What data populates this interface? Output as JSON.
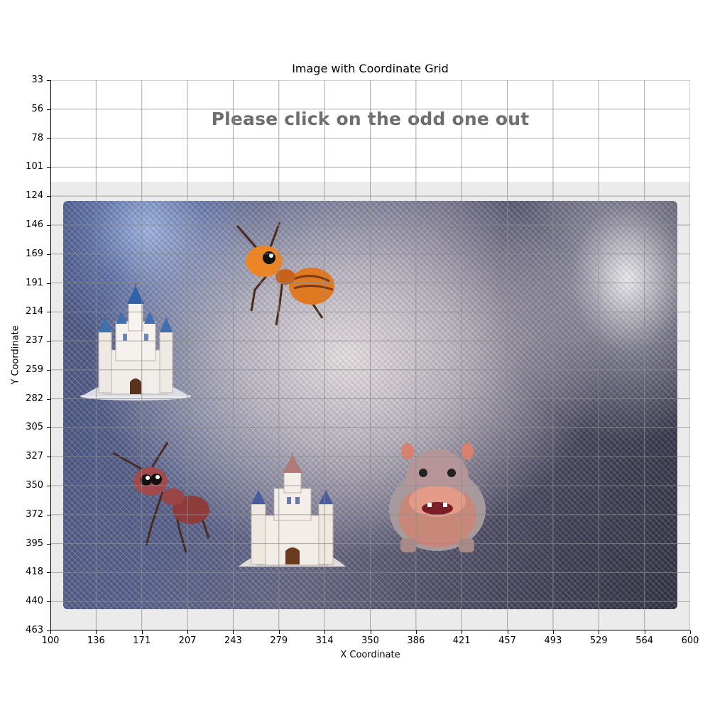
{
  "plot": {
    "title": "Image with Coordinate Grid",
    "xlabel": "X Coordinate",
    "ylabel": "Y Coordinate",
    "x_ticks": [
      "100",
      "136",
      "171",
      "207",
      "243",
      "279",
      "314",
      "350",
      "386",
      "421",
      "457",
      "493",
      "529",
      "564",
      "600"
    ],
    "y_ticks": [
      "33",
      "56",
      "78",
      "101",
      "124",
      "146",
      "169",
      "191",
      "214",
      "237",
      "259",
      "282",
      "305",
      "327",
      "350",
      "372",
      "395",
      "418",
      "440",
      "463"
    ],
    "grid": true
  },
  "captcha": {
    "prompt": "Please click on the odd one out",
    "items": [
      {
        "name": "castle",
        "icon": "castle-icon"
      },
      {
        "name": "ant",
        "icon": "ant-icon"
      },
      {
        "name": "castle",
        "icon": "castle-icon"
      },
      {
        "name": "ant",
        "icon": "ant-icon"
      },
      {
        "name": "hippo",
        "icon": "hippo-icon"
      }
    ]
  },
  "colors": {
    "prompt_text": "#6e6e6e",
    "frame": "#ebebeb",
    "grid": "#8c8c8c"
  }
}
